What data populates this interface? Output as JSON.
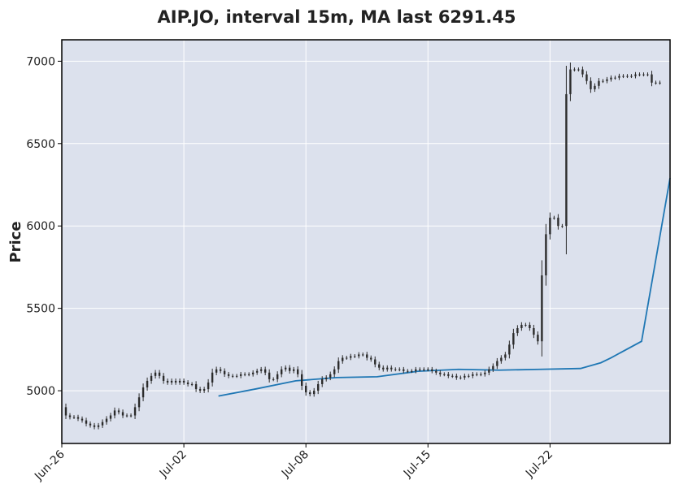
{
  "chart_data": {
    "type": "candlestick",
    "title": "AIP.JO, interval 15m, MA last 6291.45",
    "xlabel": "",
    "ylabel": "Price",
    "x_ticks": [
      "Jun-26",
      "Jul-02",
      "Jul-08",
      "Jul-15",
      "Jul-22"
    ],
    "y_ticks": [
      5000,
      5500,
      6000,
      6500,
      7000
    ],
    "ylim": [
      4680,
      7130
    ],
    "grid": true,
    "colors": {
      "plot_bg": "#dce1ed",
      "grid": "#ffffff",
      "candle": "#2b2b2b",
      "ma_line": "#1f77b4"
    },
    "price_series": {
      "x": [
        0,
        2,
        4,
        6,
        8,
        10,
        12,
        14,
        16,
        18,
        20,
        22,
        24,
        26,
        28,
        30,
        32,
        34,
        36,
        38,
        40,
        42,
        44,
        46,
        48,
        50,
        52,
        54,
        56,
        58,
        60,
        62,
        64,
        66,
        68,
        70,
        72,
        74,
        76,
        78,
        80,
        82,
        84,
        86,
        88,
        90,
        92,
        94,
        96,
        98,
        100,
        102,
        104,
        106,
        108,
        110,
        112,
        114,
        116,
        118,
        120,
        122,
        124,
        126,
        128,
        130,
        132,
        134,
        136,
        138,
        140,
        142,
        144,
        146,
        148,
        150,
        152,
        154,
        156,
        158,
        160,
        162,
        164,
        166,
        168,
        170,
        172,
        174,
        176,
        178,
        180,
        182,
        184,
        186,
        188,
        190,
        192,
        194,
        196,
        198,
        200,
        202,
        204,
        206,
        208,
        210,
        212,
        214,
        216,
        218,
        220,
        222,
        224,
        226,
        228,
        230,
        232,
        234,
        236,
        238,
        240,
        242,
        244,
        246,
        248,
        250,
        252,
        254,
        256,
        258,
        260,
        262,
        264,
        266,
        268,
        270,
        272,
        274,
        276,
        278,
        280,
        282,
        284,
        286,
        288,
        290,
        292,
        294
      ],
      "close": [
        4900,
        4850,
        4840,
        4840,
        4830,
        4820,
        4800,
        4790,
        4780,
        4790,
        4810,
        4830,
        4850,
        4880,
        4870,
        4850,
        4850,
        4850,
        4900,
        4960,
        5020,
        5060,
        5090,
        5110,
        5090,
        5060,
        5050,
        5060,
        5050,
        5060,
        5050,
        5040,
        5040,
        5010,
        5000,
        5010,
        5050,
        5110,
        5130,
        5120,
        5100,
        5090,
        5090,
        5090,
        5100,
        5100,
        5100,
        5110,
        5120,
        5130,
        5110,
        5070,
        5070,
        5100,
        5130,
        5140,
        5120,
        5130,
        5100,
        5030,
        4990,
        4980,
        5000,
        5040,
        5070,
        5080,
        5100,
        5130,
        5180,
        5200,
        5200,
        5210,
        5210,
        5220,
        5220,
        5200,
        5190,
        5160,
        5140,
        5130,
        5140,
        5130,
        5130,
        5130,
        5120,
        5120,
        5120,
        5130,
        5130,
        5130,
        5130,
        5120,
        5110,
        5100,
        5100,
        5090,
        5090,
        5080,
        5080,
        5090,
        5090,
        5100,
        5100,
        5100,
        5110,
        5130,
        5150,
        5180,
        5200,
        5220,
        5280,
        5350,
        5380,
        5400,
        5400,
        5380,
        5340,
        5300,
        5700,
        5950,
        6050,
        6050,
        6000,
        6000,
        6800,
        6950,
        6950,
        6950,
        6920,
        6880,
        6830,
        6850,
        6880,
        6880,
        6890,
        6900,
        6900,
        6910,
        6910,
        6910,
        6910,
        6920,
        6920,
        6920,
        6920,
        6870,
        6870,
        6870
      ]
    },
    "ma_series": {
      "x": [
        77,
        95,
        115,
        135,
        155,
        175,
        195,
        215,
        235,
        255,
        265,
        270,
        285,
        299
      ],
      "values": [
        4968,
        5010,
        5060,
        5080,
        5085,
        5118,
        5130,
        5125,
        5130,
        5135,
        5170,
        5200,
        5300,
        6291.45
      ]
    },
    "x_tick_positions": [
      0,
      60,
      120,
      180,
      240
    ]
  }
}
